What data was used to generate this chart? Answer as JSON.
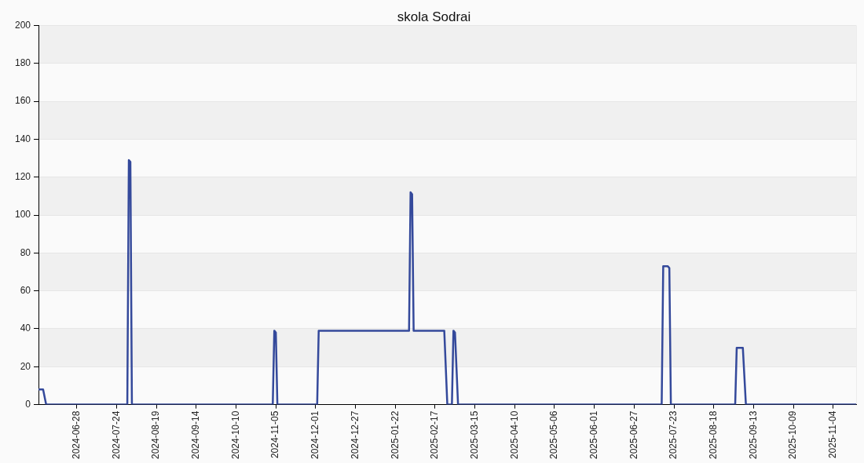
{
  "chart_data": {
    "type": "line",
    "title": "skola Sodrai",
    "x": [
      "2024-06-03",
      "2024-06-06",
      "2024-06-08",
      "2024-07-31",
      "2024-08-01",
      "2024-08-02",
      "2024-08-03",
      "2024-11-03",
      "2024-11-04",
      "2024-11-05",
      "2024-11-06",
      "2024-12-02",
      "2024-12-03",
      "2025-01-31",
      "2025-02-01",
      "2025-02-02",
      "2025-02-03",
      "2025-02-23",
      "2025-02-25",
      "2025-02-28",
      "2025-03-01",
      "2025-03-02",
      "2025-03-04",
      "2025-07-15",
      "2025-07-16",
      "2025-07-19",
      "2025-07-20",
      "2025-07-21",
      "2025-09-01",
      "2025-09-02",
      "2025-09-06",
      "2025-09-08",
      "2025-11-19"
    ],
    "values": [
      8,
      8,
      0,
      0,
      129,
      128,
      0,
      0,
      39,
      38,
      0,
      0,
      39,
      39,
      112,
      111,
      39,
      39,
      0,
      0,
      39,
      38,
      0,
      0,
      73,
      73,
      72,
      0,
      0,
      30,
      30,
      0,
      0
    ],
    "color": "#34499b",
    "marker": "none",
    "xlim": [
      "2024-06-03",
      "2025-11-19"
    ],
    "xticks": [
      "2024-06-28",
      "2024-07-24",
      "2024-08-19",
      "2024-09-14",
      "2024-10-10",
      "2024-11-05",
      "2024-12-01",
      "2024-12-27",
      "2025-01-22",
      "2025-02-17",
      "2025-03-15",
      "2025-04-10",
      "2025-05-06",
      "2025-06-01",
      "2025-06-27",
      "2025-07-23",
      "2025-08-18",
      "2025-09-13",
      "2025-10-09",
      "2025-11-04"
    ],
    "ylim": [
      0,
      200
    ],
    "yticks": [
      0,
      20,
      40,
      60,
      80,
      100,
      120,
      140,
      160,
      180,
      200
    ],
    "grid": "y"
  }
}
